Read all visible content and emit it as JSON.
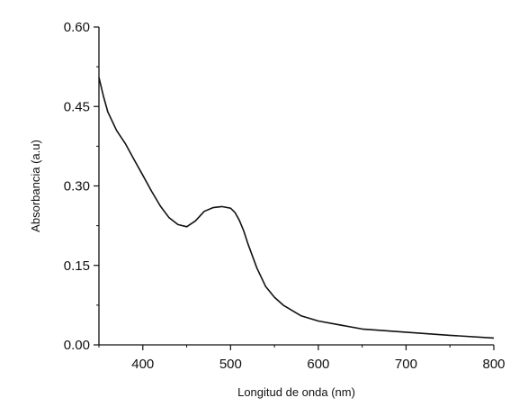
{
  "chart_data": {
    "type": "line",
    "title": "",
    "xlabel": "Longitud de onda (nm)",
    "ylabel": "Absorbancia (a.u)",
    "xlim": [
      350,
      800
    ],
    "ylim": [
      0,
      0.6
    ],
    "xticks": [
      400,
      500,
      600,
      700,
      800
    ],
    "xtick_labels": [
      "400",
      "500",
      "600",
      "700",
      "800"
    ],
    "yticks": [
      0,
      0.15,
      0.3,
      0.45,
      0.6
    ],
    "ytick_labels": [
      "0.00",
      "0.15",
      "0.30",
      "0.45",
      "0.60"
    ],
    "grid": false,
    "legend": "none",
    "line_color": "#111111",
    "series": [
      {
        "x": [
          350,
          355,
          360,
          370,
          380,
          390,
          400,
          410,
          420,
          430,
          440,
          450,
          460,
          470,
          480,
          490,
          500,
          505,
          510,
          515,
          520,
          530,
          540,
          550,
          560,
          580,
          600,
          650,
          700,
          750,
          800
        ],
        "y": [
          0.505,
          0.47,
          0.44,
          0.405,
          0.38,
          0.35,
          0.32,
          0.29,
          0.262,
          0.24,
          0.227,
          0.223,
          0.234,
          0.252,
          0.259,
          0.261,
          0.258,
          0.25,
          0.235,
          0.215,
          0.19,
          0.145,
          0.11,
          0.09,
          0.075,
          0.055,
          0.045,
          0.03,
          0.024,
          0.018,
          0.013
        ]
      }
    ]
  }
}
